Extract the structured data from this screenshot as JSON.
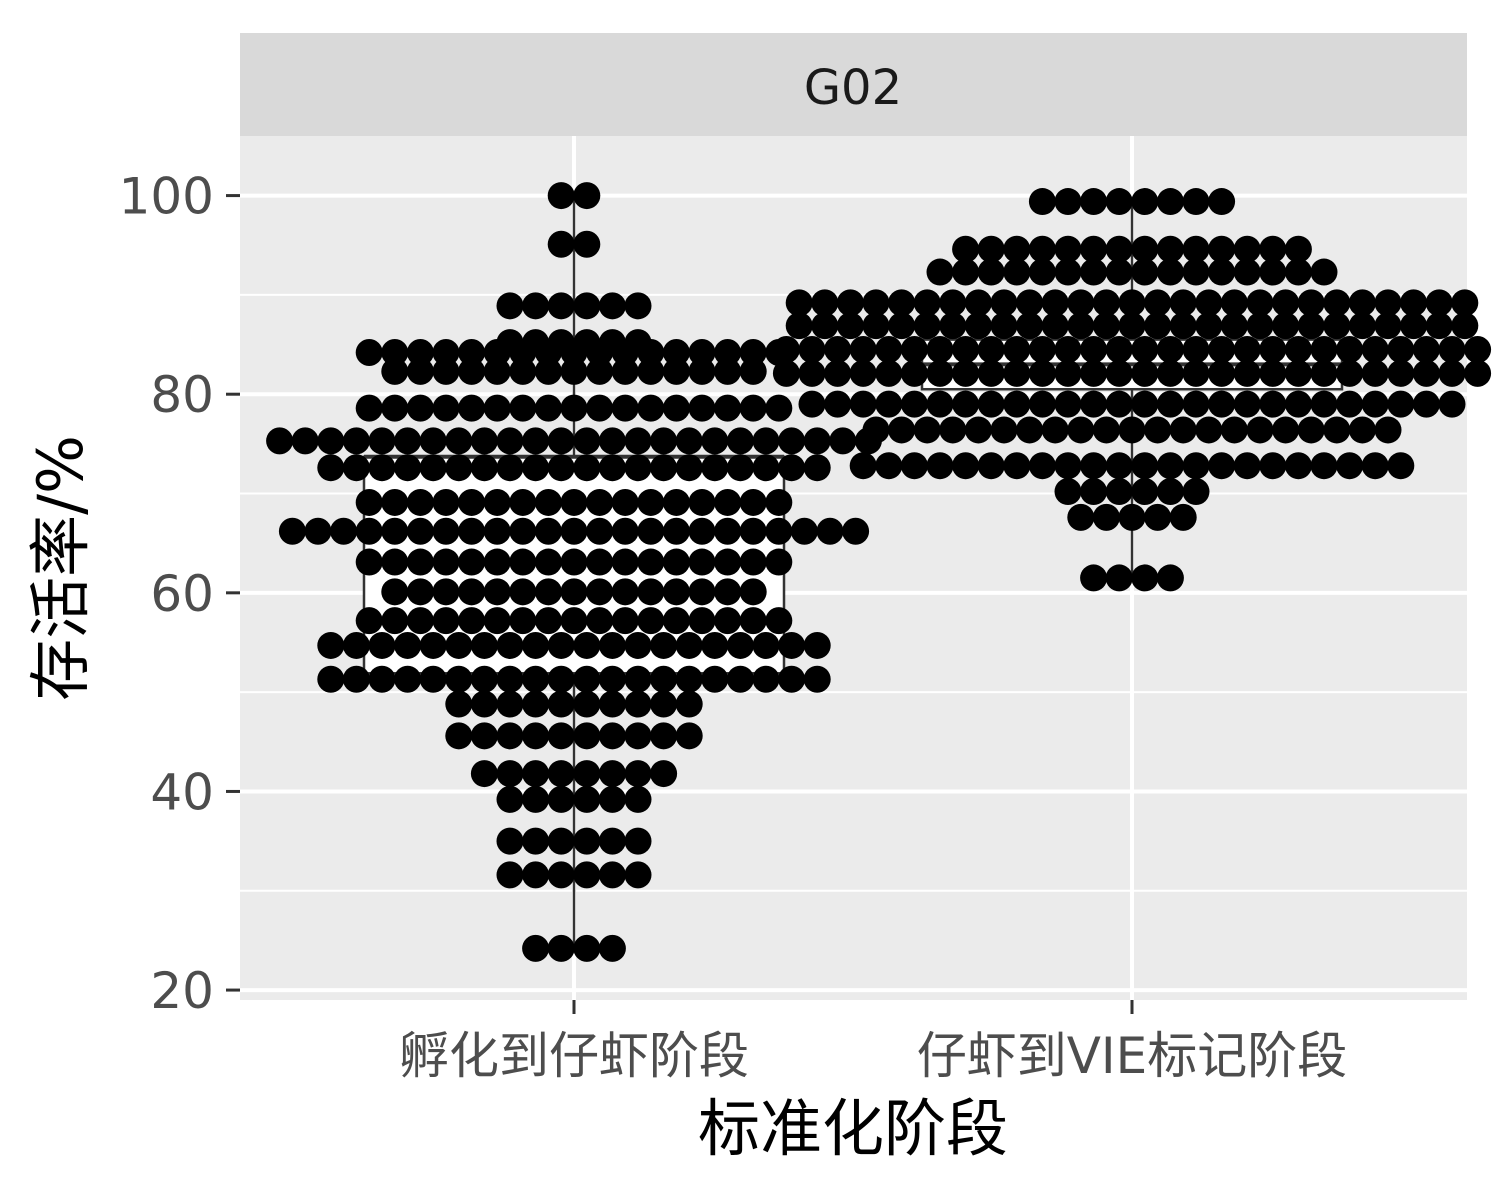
{
  "chart_data": {
    "type": "dotplot",
    "title": "",
    "facet_label": "G02",
    "xlabel": "标准化阶段",
    "ylabel": "存活率/%",
    "ylim": [
      19,
      106
    ],
    "y_ticks": [
      20,
      40,
      60,
      80,
      100
    ],
    "categories": [
      "孵化到仔虾阶段",
      "仔虾到VIE标记阶段"
    ],
    "grid": true,
    "legend": "none",
    "colors": {
      "panel": "#ebebeb",
      "strip": "#d9d9d9",
      "grid": "#ffffff",
      "dot": "#000000",
      "box": "#333333"
    },
    "box": [
      {
        "category": "孵化到仔虾阶段",
        "whisker_low": 24.2,
        "q1": 51.9,
        "median": 73.7,
        "q3": 73.7,
        "whisker_high": 100.0
      },
      {
        "category": "仔虾到VIE标记阶段",
        "whisker_low": 61.5,
        "q1": 80.5,
        "median": 83.0,
        "q3": 85.5,
        "whisker_high": 99.4
      }
    ],
    "dots": [
      {
        "category": "孵化到仔虾阶段",
        "bins": [
          {
            "y": 24.2,
            "count": 4
          },
          {
            "y": 31.6,
            "count": 6
          },
          {
            "y": 35.0,
            "count": 6
          },
          {
            "y": 39.2,
            "count": 6
          },
          {
            "y": 41.8,
            "count": 8
          },
          {
            "y": 45.6,
            "count": 10
          },
          {
            "y": 48.8,
            "count": 10
          },
          {
            "y": 51.3,
            "count": 20
          },
          {
            "y": 54.7,
            "count": 20
          },
          {
            "y": 57.2,
            "count": 17
          },
          {
            "y": 60.1,
            "count": 15
          },
          {
            "y": 63.1,
            "count": 17
          },
          {
            "y": 66.2,
            "count": 23
          },
          {
            "y": 69.1,
            "count": 17
          },
          {
            "y": 72.6,
            "count": 20
          },
          {
            "y": 75.3,
            "count": 24
          },
          {
            "y": 78.6,
            "count": 17
          },
          {
            "y": 82.3,
            "count": 15
          },
          {
            "y": 84.2,
            "count": 17
          },
          {
            "y": 85.2,
            "count": 6
          },
          {
            "y": 88.9,
            "count": 6
          },
          {
            "y": 95.1,
            "count": 2
          },
          {
            "y": 100.0,
            "count": 2
          }
        ]
      },
      {
        "category": "仔虾到VIE标记阶段",
        "bins": [
          {
            "y": 61.5,
            "count": 4
          },
          {
            "y": 67.6,
            "count": 5
          },
          {
            "y": 70.2,
            "count": 6
          },
          {
            "y": 72.8,
            "count": 22
          },
          {
            "y": 76.4,
            "count": 21
          },
          {
            "y": 79.0,
            "count": 26
          },
          {
            "y": 82.1,
            "count": 28
          },
          {
            "y": 84.5,
            "count": 28
          },
          {
            "y": 86.9,
            "count": 27
          },
          {
            "y": 89.2,
            "count": 27
          },
          {
            "y": 92.3,
            "count": 16
          },
          {
            "y": 94.6,
            "count": 14
          },
          {
            "y": 99.4,
            "count": 8
          }
        ]
      }
    ]
  }
}
